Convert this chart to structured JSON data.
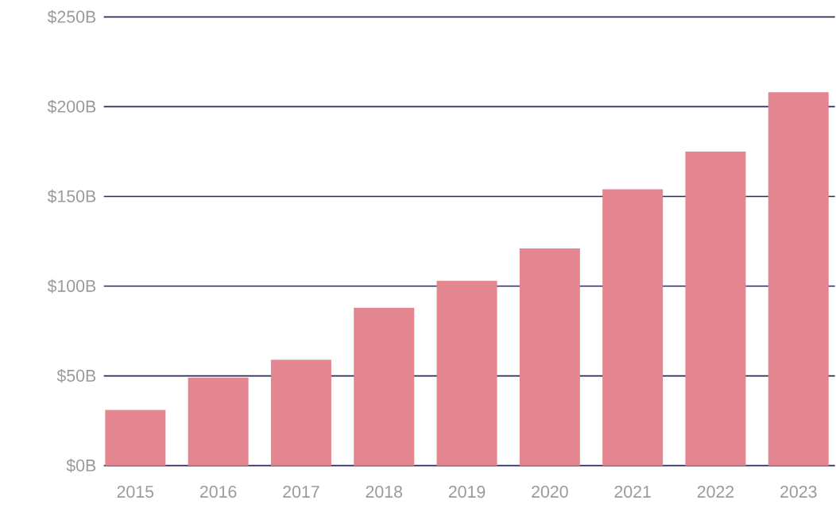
{
  "chart_data": {
    "type": "bar",
    "categories": [
      "2015",
      "2016",
      "2017",
      "2018",
      "2019",
      "2020",
      "2021",
      "2022",
      "2023"
    ],
    "values": [
      31,
      49,
      59,
      88,
      103,
      121,
      154,
      175,
      208
    ],
    "color": "#e3868f",
    "ylim": [
      0,
      250
    ],
    "yticks": [
      {
        "value": 0,
        "label": "$0B"
      },
      {
        "value": 50,
        "label": "$50B"
      },
      {
        "value": 100,
        "label": "$100B"
      },
      {
        "value": 150,
        "label": "$150B"
      },
      {
        "value": 200,
        "label": "$200B"
      },
      {
        "value": 250,
        "label": "$250B"
      }
    ],
    "grid": "y"
  }
}
